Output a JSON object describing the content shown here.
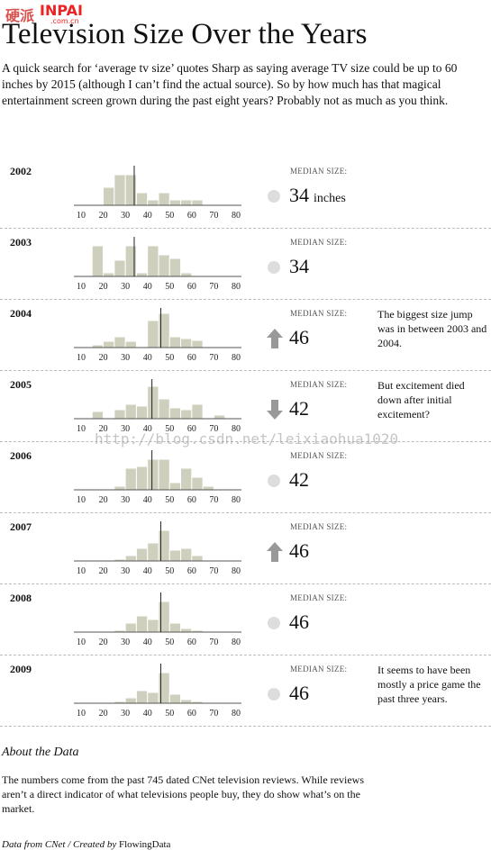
{
  "header": {
    "title": "Television Size Over the Years",
    "intro": "A quick search for ‘average tv size’ quotes Sharp as saying average TV size could be up to 60 inches by 2015 (although I can’t find the actual source). So by how much has that magical entertainment screen grown during the past eight years? Probably not as much as you think."
  },
  "watermarks": {
    "logo_cn": "硬派",
    "logo": "INPAI",
    "logo_domain": ".com.cn",
    "url": "http://blog.csdn.net/leixiaohua1020"
  },
  "chart_data": [
    {
      "type": "histogram",
      "title": "2002",
      "bins": [
        10,
        15,
        20,
        25,
        30,
        35,
        40,
        45,
        50,
        55,
        60,
        65,
        70,
        75,
        80
      ],
      "values": [
        0,
        0,
        20,
        34,
        34,
        14,
        6,
        14,
        6,
        6,
        6,
        0,
        0,
        0
      ],
      "xlim": [
        10,
        80
      ],
      "xticks": [
        10,
        20,
        30,
        40,
        50,
        60,
        70,
        80
      ],
      "color": "#cfcfbd",
      "median_label": "MEDIAN SIZE:",
      "median": 34,
      "unit": "inches",
      "trend": "same"
    },
    {
      "type": "histogram",
      "title": "2003",
      "bins": [
        10,
        15,
        20,
        25,
        30,
        35,
        40,
        45,
        50,
        55,
        60,
        65,
        70,
        75,
        80
      ],
      "values": [
        0,
        34,
        4,
        18,
        34,
        4,
        34,
        24,
        20,
        4,
        0,
        0,
        0,
        0
      ],
      "xlim": [
        10,
        80
      ],
      "xticks": [
        10,
        20,
        30,
        40,
        50,
        60,
        70,
        80
      ],
      "color": "#cfcfbd",
      "median_label": "MEDIAN SIZE:",
      "median": 34,
      "trend": "same"
    },
    {
      "type": "histogram",
      "title": "2004",
      "bins": [
        10,
        15,
        20,
        25,
        30,
        35,
        40,
        45,
        50,
        55,
        60,
        65,
        70,
        75,
        80
      ],
      "values": [
        0,
        3,
        7,
        12,
        7,
        0,
        30,
        38,
        12,
        10,
        8,
        0,
        0,
        0
      ],
      "xlim": [
        10,
        80
      ],
      "xticks": [
        10,
        20,
        30,
        40,
        50,
        60,
        70,
        80
      ],
      "color": "#cfcfbd",
      "median_label": "MEDIAN SIZE:",
      "median": 46,
      "trend": "up",
      "note": "The biggest size jump was in between 2003 and 2004."
    },
    {
      "type": "histogram",
      "title": "2005",
      "bins": [
        10,
        15,
        20,
        25,
        30,
        35,
        40,
        45,
        50,
        55,
        60,
        65,
        70,
        75,
        80
      ],
      "values": [
        0,
        8,
        0,
        10,
        16,
        14,
        36,
        22,
        12,
        10,
        16,
        0,
        4,
        0
      ],
      "xlim": [
        10,
        80
      ],
      "xticks": [
        10,
        20,
        30,
        40,
        50,
        60,
        70,
        80
      ],
      "color": "#cfcfbd",
      "median_label": "MEDIAN SIZE:",
      "median": 42,
      "trend": "down",
      "note": "But excitement died down after initial excitement?"
    },
    {
      "type": "histogram",
      "title": "2006",
      "bins": [
        10,
        15,
        20,
        25,
        30,
        35,
        40,
        45,
        50,
        55,
        60,
        65,
        70,
        75,
        80
      ],
      "values": [
        0,
        1,
        1,
        4,
        24,
        26,
        34,
        34,
        8,
        24,
        14,
        4,
        0,
        0
      ],
      "xlim": [
        10,
        80
      ],
      "xticks": [
        10,
        20,
        30,
        40,
        50,
        60,
        70,
        80
      ],
      "color": "#cfcfbd",
      "median_label": "MEDIAN SIZE:",
      "median": 42,
      "trend": "same"
    },
    {
      "type": "histogram",
      "title": "2007",
      "bins": [
        10,
        15,
        20,
        25,
        30,
        35,
        40,
        45,
        50,
        55,
        60,
        65,
        70,
        75,
        80
      ],
      "values": [
        0,
        0,
        1,
        2,
        6,
        14,
        20,
        34,
        12,
        14,
        6,
        0,
        1,
        0
      ],
      "xlim": [
        10,
        80
      ],
      "xticks": [
        10,
        20,
        30,
        40,
        50,
        60,
        70,
        80
      ],
      "color": "#cfcfbd",
      "median_label": "MEDIAN SIZE:",
      "median": 46,
      "trend": "up"
    },
    {
      "type": "histogram",
      "title": "2008",
      "bins": [
        10,
        15,
        20,
        25,
        30,
        35,
        40,
        45,
        50,
        55,
        60,
        65,
        70,
        75,
        80
      ],
      "values": [
        0,
        0,
        0,
        2,
        10,
        18,
        14,
        34,
        10,
        4,
        2,
        0,
        0,
        0
      ],
      "xlim": [
        10,
        80
      ],
      "xticks": [
        10,
        20,
        30,
        40,
        50,
        60,
        70,
        80
      ],
      "color": "#cfcfbd",
      "median_label": "MEDIAN SIZE:",
      "median": 46,
      "trend": "same"
    },
    {
      "type": "histogram",
      "title": "2009",
      "bins": [
        10,
        15,
        20,
        25,
        30,
        35,
        40,
        45,
        50,
        55,
        60,
        65,
        70,
        75,
        80
      ],
      "values": [
        0,
        0,
        0,
        2,
        6,
        14,
        12,
        34,
        10,
        4,
        2,
        1,
        0,
        0
      ],
      "xlim": [
        10,
        80
      ],
      "xticks": [
        10,
        20,
        30,
        40,
        50,
        60,
        70,
        80
      ],
      "color": "#cfcfbd",
      "median_label": "MEDIAN SIZE:",
      "median": 46,
      "trend": "same",
      "note": "It seems to have been mostly a price game the past three years."
    }
  ],
  "footer": {
    "about_title": "About the Data",
    "about_text": "The numbers come from the past 745 dated CNet television reviews. While reviews aren’t a direct indicator of what televisions people buy, they do show what’s on the market.",
    "credit_prefix": "Data from CNet / Created by",
    "credit_name": "FlowingData"
  }
}
